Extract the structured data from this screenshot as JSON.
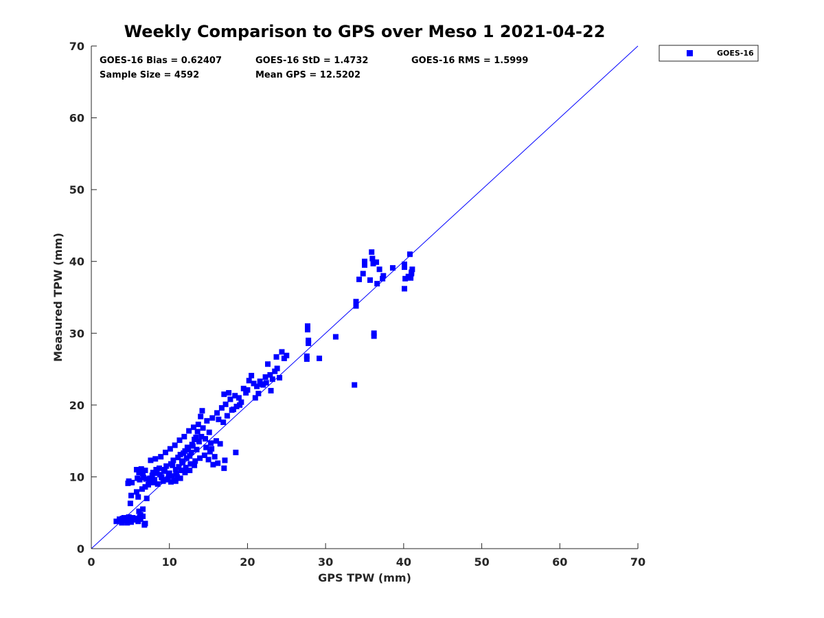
{
  "chart_data": {
    "type": "scatter",
    "title": "Weekly Comparison to GPS over Meso 1 2021-04-22",
    "xlabel": "GPS TPW (mm)",
    "ylabel": "Measured TPW (mm)",
    "xlim": [
      0,
      70
    ],
    "ylim": [
      0,
      70
    ],
    "x_ticks": [
      "0",
      "10",
      "20",
      "30",
      "40",
      "50",
      "60",
      "70"
    ],
    "y_ticks": [
      "0",
      "10",
      "20",
      "30",
      "40",
      "50",
      "60",
      "70"
    ],
    "grid": false,
    "legend_position": "outside-top-right",
    "stats": {
      "bias": "GOES-16 Bias = 0.62407",
      "std": "GOES-16 StD = 1.4732",
      "rms": "GOES-16 RMS = 1.5999",
      "sample_size": "Sample Size = 4592",
      "mean_gps": "Mean GPS = 12.5202"
    },
    "reference_line": {
      "from": [
        0,
        0
      ],
      "to": [
        70,
        70
      ],
      "color": "#0000ff"
    },
    "series": [
      {
        "name": "GOES-16",
        "color": "#0000ff",
        "marker": "square",
        "points": [
          [
            3.2,
            3.8
          ],
          [
            3.6,
            4.1
          ],
          [
            3.9,
            3.6
          ],
          [
            4.2,
            4.3
          ],
          [
            4.5,
            3.9
          ],
          [
            4.8,
            4.4
          ],
          [
            5.1,
            3.7
          ],
          [
            5.4,
            4.0
          ],
          [
            5.7,
            4.2
          ],
          [
            6.0,
            3.8
          ],
          [
            6.3,
            4.1
          ],
          [
            6.6,
            4.5
          ],
          [
            6.9,
            3.5
          ],
          [
            6.8,
            3.3
          ],
          [
            4.0,
            4.2
          ],
          [
            4.6,
            3.6
          ],
          [
            5.3,
            4.3
          ],
          [
            6.2,
            4.4
          ],
          [
            4.8,
            9.4
          ],
          [
            4.7,
            9.1
          ],
          [
            5.2,
            9.2
          ],
          [
            5.0,
            6.3
          ],
          [
            5.1,
            7.4
          ],
          [
            6.6,
            5.5
          ],
          [
            6.3,
            4.7
          ],
          [
            6.1,
            5.2
          ],
          [
            7.1,
            7.0
          ],
          [
            5.8,
            11.0
          ],
          [
            6.4,
            11.1
          ],
          [
            6.9,
            10.9
          ],
          [
            6.1,
            10.6
          ],
          [
            6.6,
            10.4
          ],
          [
            5.9,
            9.8
          ],
          [
            6.2,
            9.6
          ],
          [
            6.5,
            8.3
          ],
          [
            6.0,
            7.2
          ],
          [
            5.8,
            7.9
          ],
          [
            6.9,
            8.6
          ],
          [
            7.3,
            8.9
          ],
          [
            7.5,
            9.8
          ],
          [
            7.8,
            10.2
          ],
          [
            8.1,
            9.6
          ],
          [
            8.4,
            10.5
          ],
          [
            8.7,
            11.2
          ],
          [
            9.0,
            9.9
          ],
          [
            9.3,
            10.8
          ],
          [
            9.6,
            11.5
          ],
          [
            9.9,
            10.2
          ],
          [
            10.2,
            11.8
          ],
          [
            10.5,
            12.3
          ],
          [
            10.8,
            11.0
          ],
          [
            11.1,
            12.7
          ],
          [
            11.4,
            13.1
          ],
          [
            11.7,
            12.0
          ],
          [
            12.0,
            13.6
          ],
          [
            12.3,
            14.1
          ],
          [
            12.6,
            12.9
          ],
          [
            12.9,
            14.5
          ],
          [
            13.2,
            15.2
          ],
          [
            13.5,
            13.8
          ],
          [
            13.8,
            14.9
          ],
          [
            14.1,
            15.6
          ],
          [
            8.0,
            9.2
          ],
          [
            8.5,
            9.0
          ],
          [
            9.2,
            9.4
          ],
          [
            9.8,
            9.7
          ],
          [
            10.3,
            10.1
          ],
          [
            10.9,
            10.4
          ],
          [
            11.5,
            10.9
          ],
          [
            12.1,
            11.3
          ],
          [
            12.7,
            11.8
          ],
          [
            13.3,
            12.2
          ],
          [
            13.9,
            12.6
          ],
          [
            14.5,
            13.0
          ],
          [
            15.0,
            12.4
          ],
          [
            15.6,
            11.7
          ],
          [
            16.2,
            11.9
          ],
          [
            17.0,
            11.2
          ],
          [
            17.1,
            12.3
          ],
          [
            18.5,
            13.4
          ],
          [
            15.8,
            12.8
          ],
          [
            16.5,
            14.6
          ],
          [
            15.2,
            13.5
          ],
          [
            14.7,
            14.1
          ],
          [
            16.0,
            15.0
          ],
          [
            15.4,
            13.9
          ],
          [
            7.6,
            12.3
          ],
          [
            8.2,
            12.5
          ],
          [
            8.9,
            12.8
          ],
          [
            9.5,
            13.4
          ],
          [
            10.1,
            13.9
          ],
          [
            10.7,
            14.4
          ],
          [
            11.3,
            15.1
          ],
          [
            11.9,
            15.6
          ],
          [
            12.5,
            16.4
          ],
          [
            13.1,
            16.9
          ],
          [
            13.7,
            17.3
          ],
          [
            14.2,
            19.2
          ],
          [
            14.0,
            18.4
          ],
          [
            14.8,
            17.8
          ],
          [
            15.5,
            18.2
          ],
          [
            16.1,
            18.9
          ],
          [
            16.7,
            19.6
          ],
          [
            17.2,
            20.1
          ],
          [
            17.8,
            20.8
          ],
          [
            18.4,
            21.3
          ],
          [
            17.0,
            21.5
          ],
          [
            17.6,
            21.7
          ],
          [
            18.9,
            21.0
          ],
          [
            19.2,
            20.4
          ],
          [
            16.3,
            18.0
          ],
          [
            16.9,
            17.6
          ],
          [
            17.4,
            18.5
          ],
          [
            18.0,
            19.3
          ],
          [
            18.6,
            19.8
          ],
          [
            19.5,
            22.3
          ],
          [
            19.8,
            21.7
          ],
          [
            20.2,
            23.4
          ],
          [
            20.5,
            24.1
          ],
          [
            20.8,
            23.0
          ],
          [
            21.2,
            22.6
          ],
          [
            21.6,
            23.3
          ],
          [
            22.0,
            22.8
          ],
          [
            22.3,
            23.9
          ],
          [
            22.6,
            25.7
          ],
          [
            22.9,
            24.2
          ],
          [
            23.2,
            23.6
          ],
          [
            23.5,
            24.7
          ],
          [
            23.8,
            25.1
          ],
          [
            24.1,
            23.8
          ],
          [
            24.4,
            27.4
          ],
          [
            24.7,
            26.5
          ],
          [
            25.0,
            26.9
          ],
          [
            23.7,
            26.7
          ],
          [
            21.0,
            21.0
          ],
          [
            21.8,
            22.9
          ],
          [
            22.4,
            23.1
          ],
          [
            23.0,
            22.0
          ],
          [
            21.4,
            21.6
          ],
          [
            20.0,
            22.1
          ],
          [
            19.0,
            20.0
          ],
          [
            18.2,
            19.4
          ],
          [
            9.0,
            10.0
          ],
          [
            9.4,
            11.0
          ],
          [
            10.0,
            10.5
          ],
          [
            10.4,
            11.6
          ],
          [
            10.6,
            9.5
          ],
          [
            11.0,
            10.0
          ],
          [
            11.2,
            11.4
          ],
          [
            11.6,
            12.2
          ],
          [
            11.8,
            13.3
          ],
          [
            12.2,
            12.6
          ],
          [
            12.4,
            13.8
          ],
          [
            12.8,
            13.4
          ],
          [
            13.0,
            14.3
          ],
          [
            13.4,
            15.5
          ],
          [
            13.6,
            16.3
          ],
          [
            14.3,
            16.8
          ],
          [
            14.6,
            15.3
          ],
          [
            15.1,
            16.2
          ],
          [
            15.3,
            14.7
          ],
          [
            13.2,
            11.6
          ],
          [
            12.6,
            10.9
          ],
          [
            12.0,
            10.6
          ],
          [
            11.4,
            9.8
          ],
          [
            10.8,
            9.4
          ],
          [
            10.2,
            9.3
          ],
          [
            9.6,
            9.6
          ],
          [
            8.8,
            10.3
          ],
          [
            8.3,
            11.0
          ],
          [
            7.9,
            10.6
          ],
          [
            7.4,
            9.4
          ],
          [
            7.0,
            9.7
          ],
          [
            6.7,
            9.9
          ],
          [
            27.7,
            31.0
          ],
          [
            27.7,
            30.5
          ],
          [
            27.8,
            29.0
          ],
          [
            27.8,
            28.6
          ],
          [
            27.6,
            26.8
          ],
          [
            27.6,
            26.4
          ],
          [
            29.2,
            26.5
          ],
          [
            31.3,
            29.5
          ],
          [
            33.7,
            22.8
          ],
          [
            33.9,
            34.4
          ],
          [
            33.9,
            33.8
          ],
          [
            34.3,
            37.5
          ],
          [
            34.8,
            38.3
          ],
          [
            35.0,
            39.5
          ],
          [
            35.0,
            40.0
          ],
          [
            35.7,
            37.4
          ],
          [
            35.9,
            41.3
          ],
          [
            36.0,
            40.4
          ],
          [
            36.1,
            39.7
          ],
          [
            36.5,
            39.9
          ],
          [
            36.2,
            30.0
          ],
          [
            36.2,
            29.6
          ],
          [
            36.6,
            36.9
          ],
          [
            36.9,
            38.9
          ],
          [
            37.3,
            37.6
          ],
          [
            37.4,
            38.0
          ],
          [
            38.6,
            39.1
          ],
          [
            40.1,
            39.6
          ],
          [
            40.1,
            39.2
          ],
          [
            40.2,
            37.6
          ],
          [
            40.1,
            36.2
          ],
          [
            40.8,
            41.0
          ],
          [
            40.9,
            37.7
          ],
          [
            41.0,
            38.3
          ],
          [
            41.1,
            38.9
          ],
          [
            41.0,
            38.5
          ],
          [
            40.6,
            37.9
          ]
        ]
      }
    ]
  }
}
